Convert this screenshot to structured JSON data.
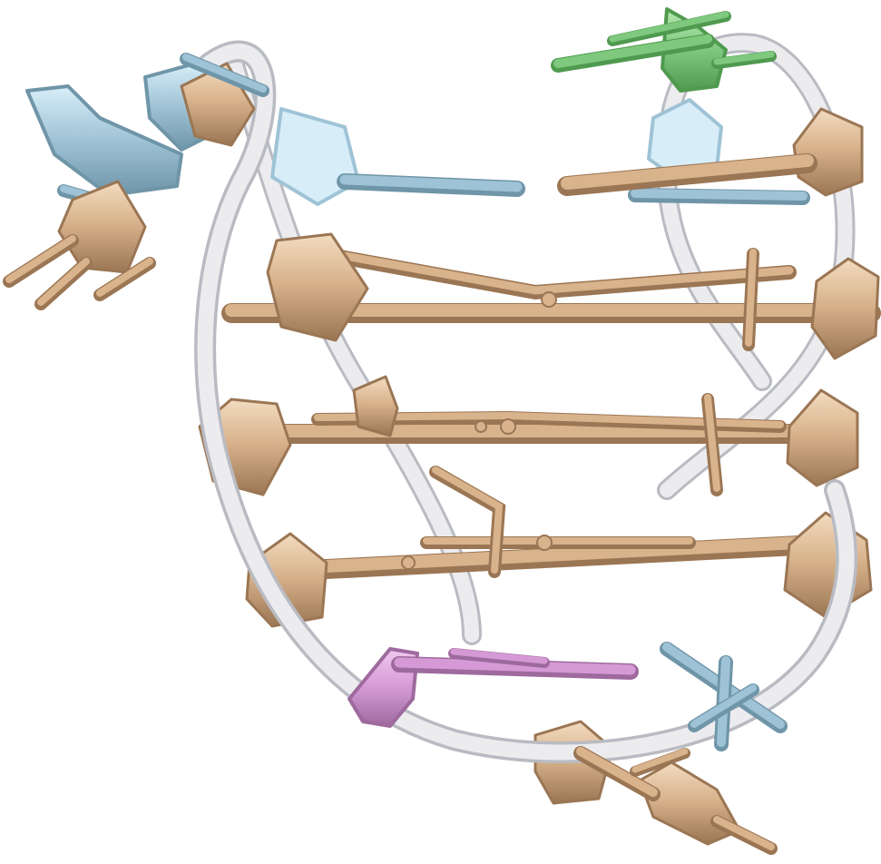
{
  "image": {
    "subject": "molecular-structure",
    "background_color": "#ffffff",
    "colors": {
      "backbone": "#ececef",
      "backbone_edge": "#b9bbc2",
      "tan": "#d9b38c",
      "tan_light": "#f2dcc0",
      "tan_dark": "#9b7654",
      "blue": "#9fc3d6",
      "blue_light": "#d7eef8",
      "blue_dark": "#6f95a8",
      "green": "#7fc97f",
      "green_dark": "#4f9a4f",
      "purple": "#d59ad5",
      "purple_dark": "#9e6a9e"
    }
  }
}
